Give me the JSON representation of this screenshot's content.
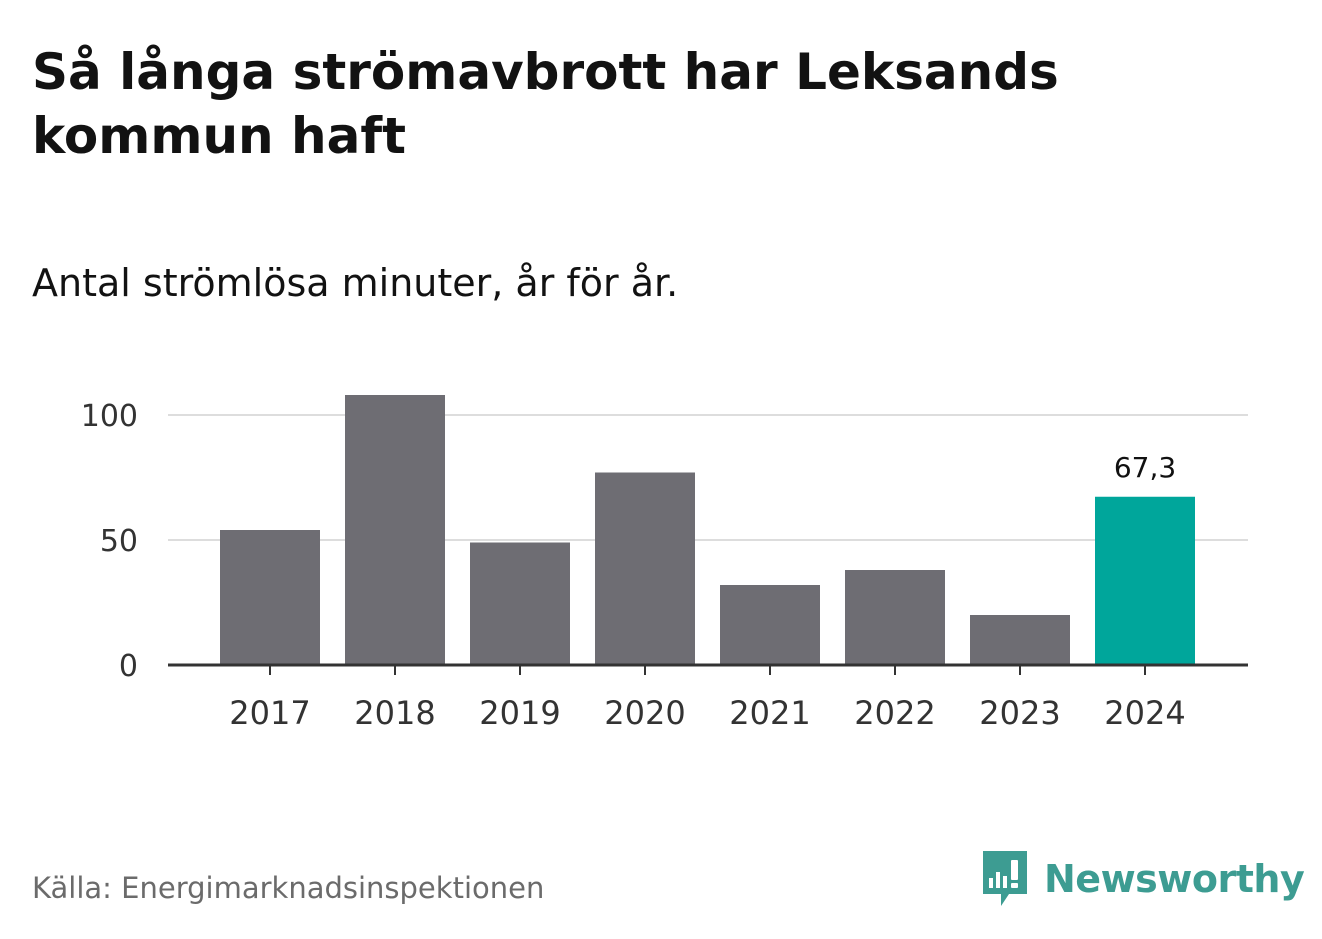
{
  "title": "Så långa strömavbrott har Leksands kommun haft",
  "subtitle": "Antal strömlösa minuter, år för år.",
  "source": "Källa: Energimarknadsinspektionen",
  "logo": {
    "name": "Newsworthy",
    "icon": "newsworthy-logo-icon",
    "color": "#3d9c92"
  },
  "colors": {
    "bar": "#6e6d73",
    "highlight": "#00a69b",
    "grid": "#dddddd",
    "axis": "#333333"
  },
  "chart_data": {
    "type": "bar",
    "title": "Så långa strömavbrott har Leksands kommun haft",
    "subtitle": "Antal strömlösa minuter, år för år.",
    "xlabel": "",
    "ylabel": "",
    "categories": [
      "2017",
      "2018",
      "2019",
      "2020",
      "2021",
      "2022",
      "2023",
      "2024"
    ],
    "values": [
      54,
      108,
      49,
      77,
      32,
      38,
      20,
      67.3
    ],
    "highlight_index": 7,
    "data_labels": [
      "",
      "",
      "",
      "",
      "",
      "",
      "",
      "67,3"
    ],
    "yticks": [
      0,
      50,
      100
    ],
    "ytick_labels": [
      "0",
      "50",
      "100"
    ],
    "ylim": [
      0,
      110
    ],
    "grid": true
  }
}
